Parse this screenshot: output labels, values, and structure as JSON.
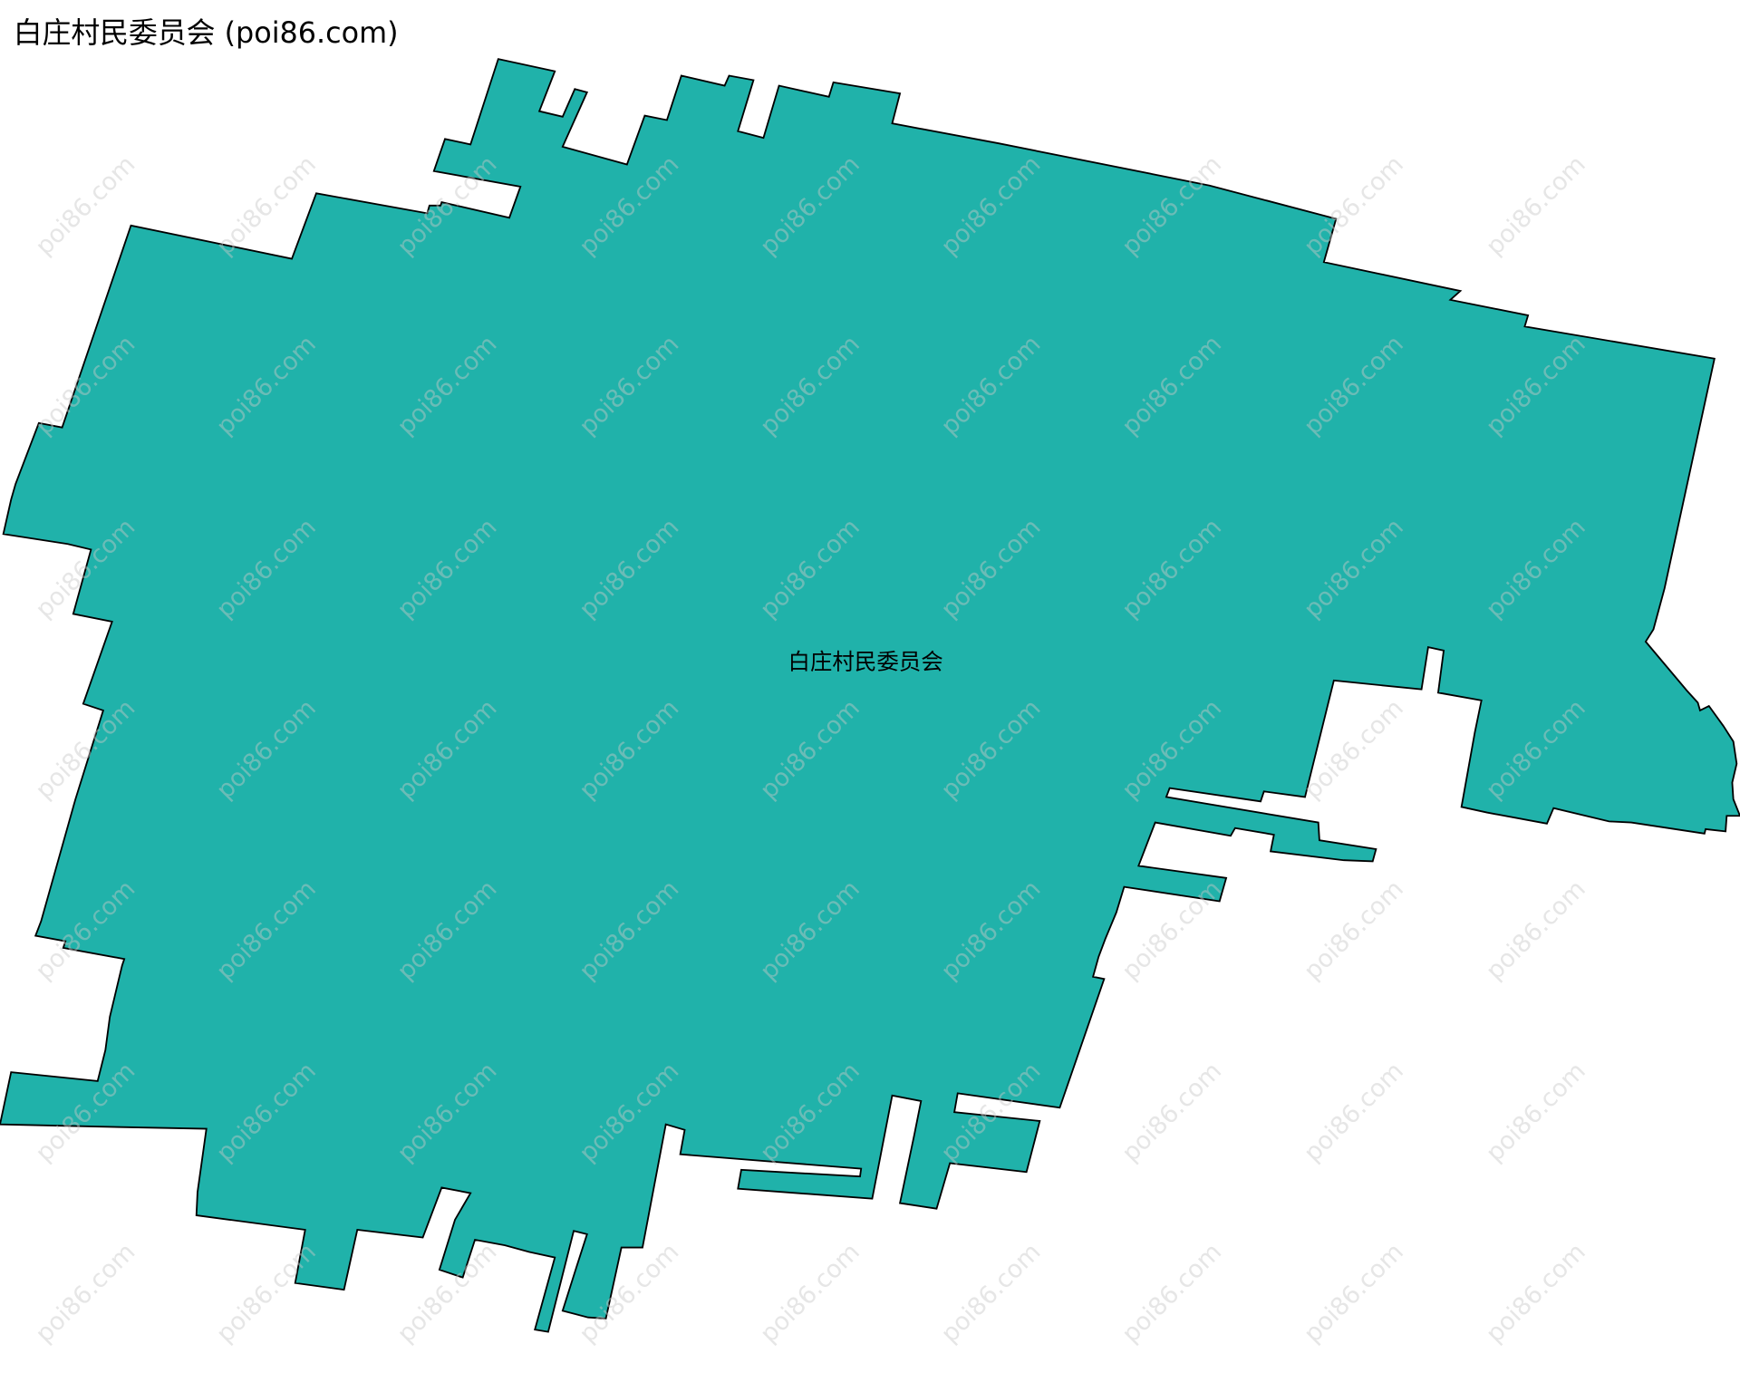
{
  "map": {
    "title": "白庄村民委员会 (poi86.com)",
    "region_label": "白庄村民委员会",
    "watermark": "poi86.com",
    "colors": {
      "region_fill": "#20b2aa",
      "region_stroke": "#000000",
      "background": "#ffffff"
    }
  }
}
